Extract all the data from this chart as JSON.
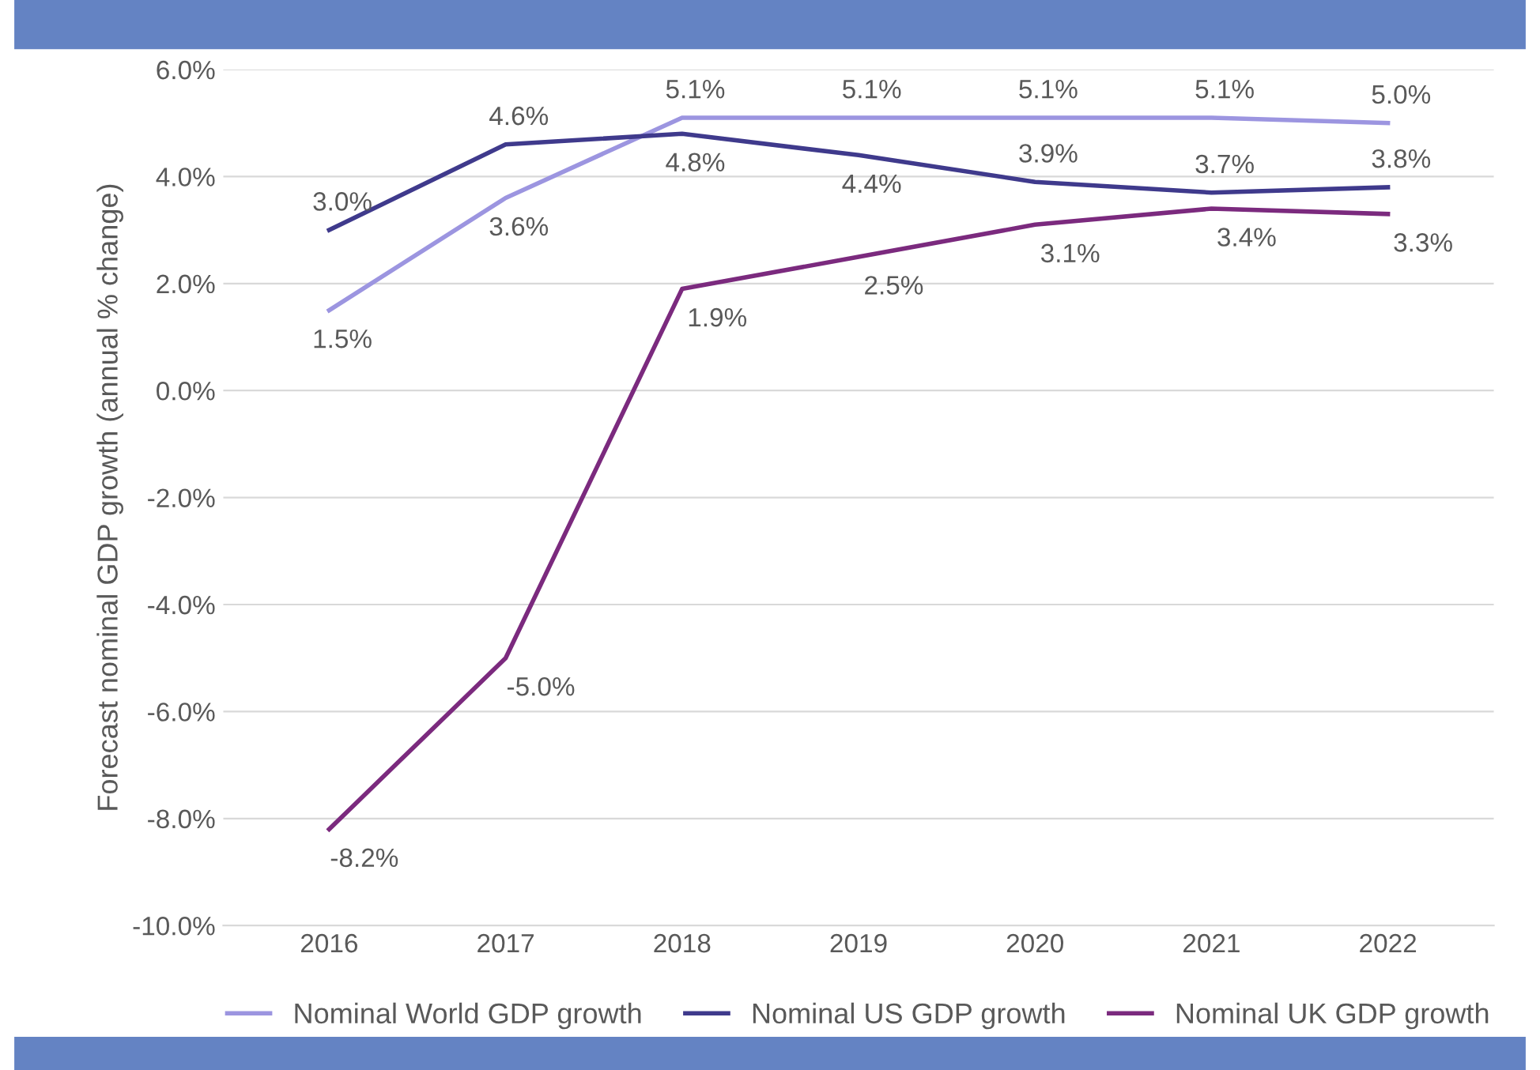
{
  "chart_data": {
    "type": "line",
    "ylabel": "Forecast nominal GDP growth (annual % change)",
    "categories": [
      "2016",
      "2017",
      "2018",
      "2019",
      "2020",
      "2021",
      "2022"
    ],
    "series": [
      {
        "name": "Nominal World GDP growth",
        "color": "#9c95e0",
        "values": [
          1.5,
          3.6,
          5.1,
          5.1,
          5.1,
          5.1,
          5.0
        ],
        "value_labels": [
          "1.5%",
          "3.6%",
          "5.1%",
          "5.1%",
          "5.1%",
          "5.1%",
          "5.0%"
        ]
      },
      {
        "name": "Nominal US GDP growth",
        "color": "#3f3a8c",
        "values": [
          3.0,
          4.6,
          4.8,
          4.4,
          3.9,
          3.7,
          3.8
        ],
        "value_labels": [
          "3.0%",
          "4.6%",
          "4.8%",
          "4.4%",
          "3.9%",
          "3.7%",
          "3.8%"
        ]
      },
      {
        "name": "Nominal UK GDP growth",
        "color": "#7b2a7e",
        "values": [
          -8.2,
          -5.0,
          1.9,
          2.5,
          3.1,
          3.4,
          3.3
        ],
        "value_labels": [
          "-8.2%",
          "-5.0%",
          "1.9%",
          "2.5%",
          "3.1%",
          "3.4%",
          "3.3%"
        ]
      }
    ],
    "ylim": [
      -10,
      6
    ],
    "yticks": [
      {
        "value": -10,
        "label": "-10.0%"
      },
      {
        "value": -8,
        "label": "-8.0%"
      },
      {
        "value": -6,
        "label": "-6.0%"
      },
      {
        "value": -4,
        "label": "-4.0%"
      },
      {
        "value": -2,
        "label": "-2.0%"
      },
      {
        "value": 0,
        "label": "0.0%"
      },
      {
        "value": 2,
        "label": "2.0%"
      },
      {
        "value": 4,
        "label": "4.0%"
      },
      {
        "value": 6,
        "label": "6.0%"
      }
    ],
    "grid": "y",
    "legend": "bottom",
    "marker": "none",
    "line_style": "solid"
  }
}
